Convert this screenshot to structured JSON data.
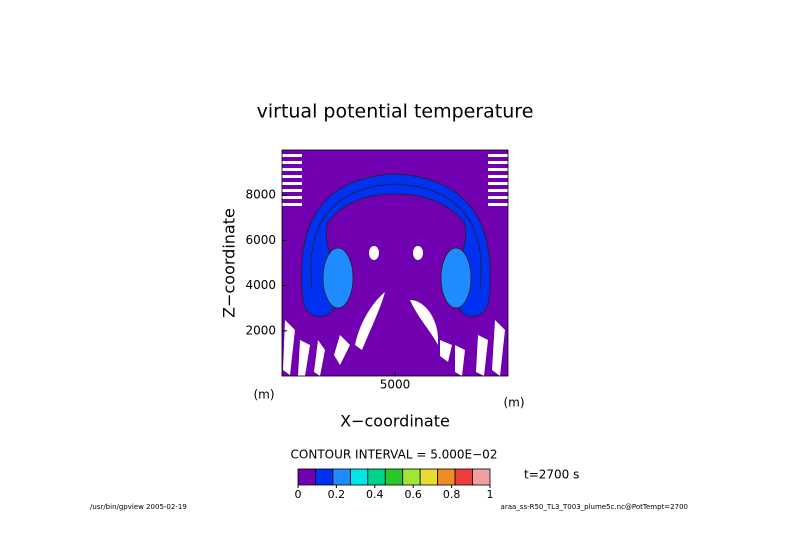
{
  "chart_data": {
    "type": "contour",
    "title": "virtual potential temperature",
    "x_label": "X−coordinate",
    "y_label": "Z−coordinate",
    "x_unit": "(m)",
    "y_unit": "(m)",
    "xlim": [
      0,
      10000
    ],
    "ylim": [
      0,
      10000
    ],
    "xticks": [
      5000
    ],
    "yticks": [
      2000,
      4000,
      6000,
      8000
    ],
    "colorbar": {
      "levels": [
        0,
        0.1,
        0.2,
        0.3,
        0.4,
        0.5,
        0.6,
        0.7,
        0.8,
        0.9,
        1
      ],
      "colors": [
        "#7000b0",
        "#0030f0",
        "#1e8cff",
        "#00e6e6",
        "#00d28c",
        "#28c828",
        "#a0e632",
        "#e6dc32",
        "#f08c28",
        "#f03c3c",
        "#f0a0a0"
      ],
      "ticks": [
        0,
        0.2,
        0.4,
        0.6,
        0.8,
        1
      ]
    },
    "contour_interval_label": "CONTOUR INTERVAL = 5.000E−02",
    "time_label": "t=2700 s",
    "footer_left": "/usr/bin/gpview  2005-02-19",
    "footer_right": "araa_ss-R50_TL3_T003_plume5c.nc@PotTempt=2700"
  }
}
